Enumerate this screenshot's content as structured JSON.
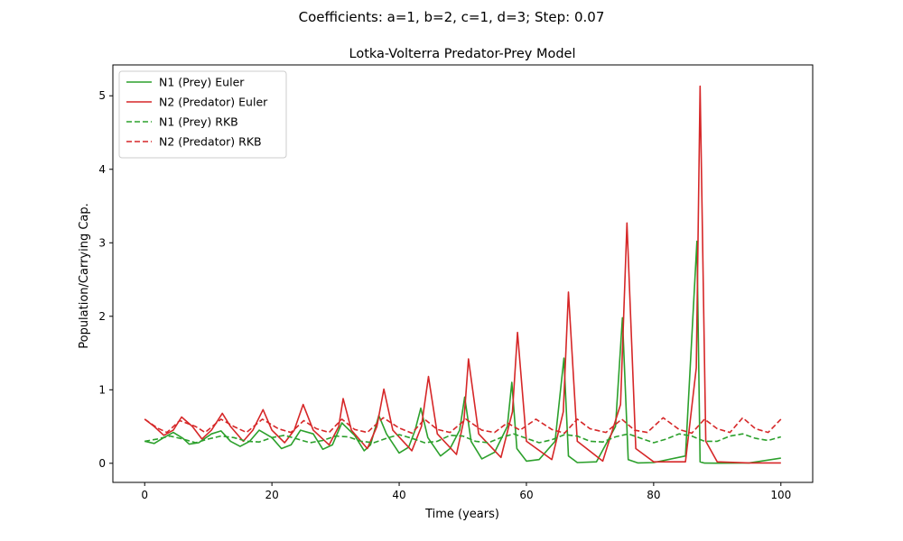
{
  "chart_data": {
    "type": "line",
    "suptitle": "Coefficients: a=1, b=2, c=1, d=3; Step: 0.07",
    "title": "Lotka-Volterra Predator-Prey Model",
    "xlabel": "Time (years)",
    "ylabel": "Population/Carrying Cap.",
    "xlim": [
      -5,
      105
    ],
    "ylim": [
      -0.26,
      5.42
    ],
    "xticks": [
      0,
      20,
      40,
      60,
      80,
      100
    ],
    "yticks": [
      0,
      1,
      2,
      3,
      4,
      5
    ],
    "grid": false,
    "legend_position": "top-left",
    "series": [
      {
        "name": "N1 (Prey) Euler",
        "color": "#2ca02c",
        "style": "solid",
        "x": [
          0,
          1.5,
          3,
          4.5,
          6,
          7,
          8.5,
          10.5,
          12,
          13.5,
          15,
          16.5,
          18,
          20,
          21.5,
          23,
          24.5,
          26.5,
          28,
          29.5,
          31,
          33,
          34.5,
          35.5,
          36.8,
          38,
          40,
          41.5,
          42.5,
          43.4,
          44.5,
          46.5,
          48,
          49.5,
          50.3,
          51.3,
          53,
          55,
          57,
          57.7,
          58.5,
          60,
          62,
          64.5,
          65.9,
          66.6,
          68,
          71,
          74,
          75.1,
          76,
          77.5,
          80,
          85,
          86.8,
          87.3,
          88,
          90,
          95,
          100
        ],
        "y": [
          0.3,
          0.27,
          0.35,
          0.42,
          0.34,
          0.26,
          0.28,
          0.4,
          0.44,
          0.3,
          0.23,
          0.3,
          0.45,
          0.35,
          0.2,
          0.25,
          0.45,
          0.4,
          0.19,
          0.25,
          0.55,
          0.38,
          0.17,
          0.25,
          0.65,
          0.4,
          0.14,
          0.22,
          0.45,
          0.75,
          0.35,
          0.1,
          0.2,
          0.45,
          0.9,
          0.3,
          0.06,
          0.15,
          0.5,
          1.1,
          0.2,
          0.03,
          0.05,
          0.3,
          1.43,
          0.1,
          0.01,
          0.02,
          0.5,
          1.98,
          0.05,
          0.005,
          0.01,
          0.1,
          3.02,
          0.02,
          0.003,
          0.001,
          0.005,
          0.07
        ]
      },
      {
        "name": "N2 (Predator) Euler",
        "color": "#d62728",
        "style": "solid",
        "x": [
          0,
          1.5,
          3,
          4.5,
          5.8,
          7.5,
          9,
          10.5,
          12.2,
          13.5,
          15.5,
          17,
          18.6,
          20,
          22,
          23.5,
          24.9,
          26.5,
          29,
          30.5,
          31.2,
          32.5,
          35,
          36.5,
          37.6,
          39,
          42,
          43.5,
          44.6,
          46,
          49,
          50.2,
          50.9,
          52.5,
          56,
          57.8,
          58.6,
          60,
          64,
          65.8,
          66.6,
          68,
          72,
          74.8,
          75.8,
          77.2,
          80,
          85,
          86.7,
          87.3,
          88.2,
          90,
          95,
          100
        ],
        "y": [
          0.6,
          0.5,
          0.38,
          0.45,
          0.63,
          0.5,
          0.33,
          0.45,
          0.68,
          0.5,
          0.3,
          0.45,
          0.73,
          0.45,
          0.28,
          0.45,
          0.8,
          0.45,
          0.25,
          0.5,
          0.88,
          0.45,
          0.2,
          0.5,
          1.01,
          0.45,
          0.17,
          0.5,
          1.18,
          0.4,
          0.12,
          0.6,
          1.42,
          0.4,
          0.08,
          0.7,
          1.78,
          0.3,
          0.05,
          0.7,
          2.33,
          0.3,
          0.03,
          0.8,
          3.27,
          0.2,
          0.02,
          0.02,
          1.3,
          5.13,
          0.3,
          0.02,
          0.005,
          0.005
        ]
      },
      {
        "name": "N1 (Prey) RKB",
        "color": "#2ca02c",
        "style": "dashed",
        "x": [
          0,
          2,
          4,
          6,
          8,
          10,
          12,
          14,
          16,
          18,
          20,
          22,
          24,
          26,
          28,
          30,
          32,
          34,
          36,
          38,
          40,
          42,
          44,
          46,
          48,
          50,
          52,
          54,
          56,
          58,
          60,
          62,
          64,
          66,
          68,
          70,
          72,
          74,
          76,
          78,
          80,
          82,
          84,
          86,
          88,
          90,
          92,
          94,
          96,
          98,
          100
        ],
        "y": [
          0.3,
          0.33,
          0.37,
          0.33,
          0.28,
          0.33,
          0.37,
          0.35,
          0.3,
          0.29,
          0.35,
          0.38,
          0.33,
          0.28,
          0.31,
          0.37,
          0.36,
          0.3,
          0.28,
          0.34,
          0.39,
          0.34,
          0.28,
          0.3,
          0.38,
          0.37,
          0.3,
          0.28,
          0.35,
          0.4,
          0.34,
          0.28,
          0.32,
          0.39,
          0.37,
          0.3,
          0.29,
          0.36,
          0.4,
          0.34,
          0.28,
          0.33,
          0.4,
          0.37,
          0.3,
          0.3,
          0.37,
          0.4,
          0.34,
          0.31,
          0.36
        ]
      },
      {
        "name": "N2 (Predator) RKB",
        "color": "#d62728",
        "style": "dashed",
        "x": [
          0,
          2,
          3.5,
          5.5,
          8,
          9.5,
          12,
          14,
          16,
          18.5,
          21,
          23,
          25,
          27,
          29,
          31,
          33,
          35,
          37.5,
          40,
          42,
          44,
          46,
          48,
          50.5,
          53,
          55,
          57,
          59,
          61.5,
          64,
          66,
          68,
          70,
          72.5,
          75,
          77,
          79,
          81.5,
          84,
          86,
          88,
          90,
          92,
          94,
          96,
          98,
          100
        ],
        "y": [
          0.6,
          0.48,
          0.42,
          0.58,
          0.5,
          0.42,
          0.6,
          0.5,
          0.42,
          0.6,
          0.47,
          0.42,
          0.58,
          0.47,
          0.42,
          0.6,
          0.46,
          0.42,
          0.62,
          0.48,
          0.41,
          0.6,
          0.46,
          0.42,
          0.6,
          0.45,
          0.42,
          0.55,
          0.45,
          0.6,
          0.46,
          0.41,
          0.6,
          0.47,
          0.42,
          0.6,
          0.45,
          0.42,
          0.62,
          0.46,
          0.41,
          0.6,
          0.47,
          0.42,
          0.62,
          0.47,
          0.42,
          0.6
        ]
      }
    ]
  }
}
